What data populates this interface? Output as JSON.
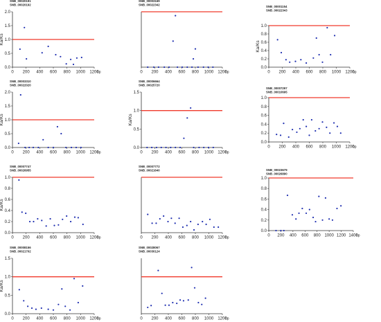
{
  "colors": {
    "threshold": "#f0392b",
    "points": "#1f2fb0",
    "axis": "#333333"
  },
  "chart_data": [
    {
      "type": "scatter",
      "genes": [
        "SNB_00020191",
        "SNB_00020192"
      ],
      "ylabel": "Ka/Ks",
      "xunit": "bp",
      "xlim": [
        0,
        1200
      ],
      "ylim": [
        0,
        2.0
      ],
      "xticks": [
        0,
        200,
        400,
        600,
        800,
        1000,
        1200
      ],
      "yticks": [
        0.0,
        0.5,
        1.0,
        1.5,
        2.0
      ],
      "threshold": 1.0,
      "points": [
        [
          110,
          0.65
        ],
        [
          175,
          1.43
        ],
        [
          205,
          0.3
        ],
        [
          435,
          0.52
        ],
        [
          525,
          0.75
        ],
        [
          635,
          0.45
        ],
        [
          705,
          0.38
        ],
        [
          790,
          0.12
        ],
        [
          855,
          0.28
        ],
        [
          895,
          0.1
        ],
        [
          945,
          0.33
        ],
        [
          1015,
          0.35
        ]
      ]
    },
    {
      "type": "scatter",
      "genes": [
        "SNB_00003169",
        "SNB_00022342"
      ],
      "ylabel": "",
      "xunit": "bp",
      "xlim": [
        0,
        1200
      ],
      "ylim": [
        0,
        1.0
      ],
      "xticks": [
        0,
        200,
        400,
        600,
        800,
        1000,
        1200
      ],
      "yticks": [],
      "threshold": 1.0,
      "points": [
        [
          95,
          0.0
        ],
        [
          185,
          0.0
        ],
        [
          255,
          0.0
        ],
        [
          340,
          0.0
        ],
        [
          410,
          0.0
        ],
        [
          470,
          0.47
        ],
        [
          505,
          0.93
        ],
        [
          535,
          0.0
        ],
        [
          605,
          0.0
        ],
        [
          680,
          0.0
        ],
        [
          750,
          0.0
        ],
        [
          770,
          0.15
        ],
        [
          800,
          0.33
        ],
        [
          840,
          0.0
        ],
        [
          920,
          0.0
        ],
        [
          990,
          0.0
        ],
        [
          1060,
          0.0
        ]
      ]
    },
    {
      "type": "scatter",
      "genes": [
        "SNB_00001154",
        "SNB_00022343"
      ],
      "ylabel": "Ka/Ks",
      "xunit": "bp",
      "xlim": [
        0,
        1200
      ],
      "ylim": [
        0,
        1.0
      ],
      "xticks": [
        0,
        200,
        400,
        600,
        800,
        1000,
        1200
      ],
      "yticks": [
        0.0,
        0.2,
        0.4,
        0.6,
        0.8,
        1.0
      ],
      "threshold": 1.0,
      "points": [
        [
          130,
          0.66
        ],
        [
          185,
          0.35
        ],
        [
          255,
          0.18
        ],
        [
          310,
          0.12
        ],
        [
          395,
          0.14
        ],
        [
          475,
          0.18
        ],
        [
          555,
          0.1
        ],
        [
          660,
          0.22
        ],
        [
          705,
          0.7
        ],
        [
          745,
          0.3
        ],
        [
          795,
          0.12
        ],
        [
          865,
          0.95
        ],
        [
          915,
          0.3
        ],
        [
          975,
          0.76
        ]
      ]
    },
    {
      "type": "scatter",
      "genes": [
        "SNB_00003310",
        "SNB_00022020"
      ],
      "ylabel": "Ka/Ks",
      "xunit": "bp",
      "xlim": [
        0,
        1200
      ],
      "ylim": [
        0,
        2.0
      ],
      "xticks": [
        0,
        200,
        400,
        600,
        800,
        1000,
        1200
      ],
      "yticks": [
        0.0,
        0.5,
        1.0,
        1.5,
        2.0
      ],
      "threshold": 1.0,
      "points": [
        [
          90,
          0.15
        ],
        [
          120,
          1.9
        ],
        [
          185,
          0.0
        ],
        [
          245,
          0.0
        ],
        [
          305,
          0.0
        ],
        [
          380,
          0.0
        ],
        [
          450,
          0.28
        ],
        [
          525,
          0.0
        ],
        [
          600,
          0.0
        ],
        [
          660,
          0.75
        ],
        [
          715,
          0.5
        ],
        [
          785,
          0.0
        ],
        [
          865,
          0.0
        ],
        [
          935,
          0.0
        ],
        [
          1005,
          0.0
        ]
      ]
    },
    {
      "type": "scatter",
      "genes": [
        "SNB_00006664",
        "SNB_00025720"
      ],
      "ylabel": "Ka/Ks",
      "xunit": "bp",
      "xlim": [
        0,
        1200
      ],
      "ylim": [
        0,
        1.5
      ],
      "xticks": [
        0,
        200,
        400,
        600,
        800,
        1000,
        1200
      ],
      "yticks": [
        0.0,
        0.5,
        1.0,
        1.5
      ],
      "threshold": 1.0,
      "points": [
        [
          85,
          0.0
        ],
        [
          155,
          0.0
        ],
        [
          225,
          0.0
        ],
        [
          295,
          0.0
        ],
        [
          365,
          0.0
        ],
        [
          435,
          0.0
        ],
        [
          505,
          0.0
        ],
        [
          575,
          0.0
        ],
        [
          630,
          0.25
        ],
        [
          680,
          0.8
        ],
        [
          730,
          1.07
        ],
        [
          775,
          0.0
        ],
        [
          855,
          0.0
        ],
        [
          925,
          0.0
        ],
        [
          995,
          0.0
        ],
        [
          1065,
          0.0
        ]
      ]
    },
    {
      "type": "scatter",
      "genes": [
        "SNB_00007297",
        "SNB_00010695"
      ],
      "ylabel": "",
      "xunit": "bp",
      "xlim": [
        0,
        1200
      ],
      "ylim": [
        0,
        1.0
      ],
      "xticks": [
        0,
        200,
        400,
        600,
        800,
        1000,
        1200
      ],
      "yticks": [
        0.0,
        0.2,
        0.4,
        0.6,
        0.8,
        1.0
      ],
      "threshold": 1.0,
      "points": [
        [
          115,
          0.17
        ],
        [
          175,
          0.15
        ],
        [
          220,
          0.42
        ],
        [
          295,
          0.11
        ],
        [
          350,
          0.28
        ],
        [
          415,
          0.22
        ],
        [
          460,
          0.3
        ],
        [
          510,
          0.5
        ],
        [
          555,
          0.35
        ],
        [
          600,
          0.15
        ],
        [
          635,
          0.5
        ],
        [
          690,
          0.25
        ],
        [
          745,
          0.3
        ],
        [
          795,
          0.45
        ],
        [
          855,
          0.33
        ],
        [
          905,
          0.2
        ],
        [
          965,
          0.43
        ],
        [
          1015,
          0.35
        ],
        [
          1065,
          0.2
        ]
      ]
    },
    {
      "type": "scatter",
      "genes": [
        "SNB_00007747",
        "SNB_00026955"
      ],
      "ylabel": "Ka/Ks",
      "xunit": "bp",
      "xlim": [
        0,
        1200
      ],
      "ylim": [
        0,
        1.0
      ],
      "xticks": [
        0,
        200,
        400,
        600,
        800,
        1000,
        1200
      ],
      "yticks": [
        0.0,
        0.2,
        0.4,
        0.6,
        0.8,
        1.0
      ],
      "threshold": 1.0,
      "points": [
        [
          95,
          0.95
        ],
        [
          140,
          0.37
        ],
        [
          195,
          0.35
        ],
        [
          255,
          0.2
        ],
        [
          310,
          0.2
        ],
        [
          370,
          0.25
        ],
        [
          430,
          0.22
        ],
        [
          495,
          0.12
        ],
        [
          555,
          0.25
        ],
        [
          615,
          0.13
        ],
        [
          675,
          0.14
        ],
        [
          735,
          0.24
        ],
        [
          795,
          0.3
        ],
        [
          855,
          0.2
        ],
        [
          915,
          0.28
        ],
        [
          965,
          0.27
        ],
        [
          1035,
          0.15
        ]
      ]
    },
    {
      "type": "scatter",
      "genes": [
        "SNB_00007772",
        "SNB_00021640"
      ],
      "ylabel": "",
      "xunit": "bp",
      "xlim": [
        0,
        1200
      ],
      "ylim": [
        0,
        1.0
      ],
      "xticks": [
        0,
        200,
        400,
        600,
        800,
        1000,
        1200
      ],
      "yticks": [],
      "threshold": 1.0,
      "points": [
        [
          95,
          0.33
        ],
        [
          160,
          0.17
        ],
        [
          220,
          0.17
        ],
        [
          275,
          0.25
        ],
        [
          330,
          0.3
        ],
        [
          395,
          0.2
        ],
        [
          445,
          0.26
        ],
        [
          500,
          0.17
        ],
        [
          560,
          0.26
        ],
        [
          615,
          0.1
        ],
        [
          675,
          0.13
        ],
        [
          730,
          0.2
        ],
        [
          780,
          0.05
        ],
        [
          840,
          0.15
        ],
        [
          905,
          0.2
        ],
        [
          960,
          0.15
        ],
        [
          1015,
          0.24
        ],
        [
          1075,
          0.1
        ],
        [
          1140,
          0.1
        ]
      ]
    },
    {
      "type": "scatter",
      "genes": [
        "SNB_00023679",
        "SNB_00026890"
      ],
      "ylabel": "",
      "xunit": "bp",
      "xlim": [
        0,
        1400
      ],
      "ylim": [
        0,
        1.0
      ],
      "xticks": [
        0,
        200,
        400,
        600,
        800,
        1000,
        1200,
        1400
      ],
      "yticks": [
        0.0,
        0.2,
        0.4,
        0.6,
        0.8,
        1.0
      ],
      "threshold": 1.0,
      "points": [
        [
          120,
          0.0
        ],
        [
          200,
          0.0
        ],
        [
          250,
          0.0
        ],
        [
          310,
          0.67
        ],
        [
          390,
          0.3
        ],
        [
          450,
          0.22
        ],
        [
          500,
          0.33
        ],
        [
          555,
          0.42
        ],
        [
          620,
          0.33
        ],
        [
          675,
          0.4
        ],
        [
          735,
          0.25
        ],
        [
          775,
          0.17
        ],
        [
          830,
          0.65
        ],
        [
          890,
          0.2
        ],
        [
          940,
          0.62
        ],
        [
          1000,
          0.22
        ],
        [
          1055,
          0.2
        ],
        [
          1130,
          0.42
        ],
        [
          1195,
          0.47
        ]
      ]
    },
    {
      "type": "scatter",
      "genes": [
        "SNB_00008156",
        "SNB_00021702"
      ],
      "ylabel": "Ka/Ks",
      "xunit": "bp",
      "xlim": [
        0,
        1200
      ],
      "ylim": [
        0,
        1.5
      ],
      "xticks": [
        0,
        200,
        400,
        600,
        800,
        1000,
        1200
      ],
      "yticks": [
        0.0,
        0.5,
        1.0,
        1.5
      ],
      "threshold": 1.0,
      "points": [
        [
          100,
          0.65
        ],
        [
          165,
          0.35
        ],
        [
          225,
          0.2
        ],
        [
          285,
          0.15
        ],
        [
          345,
          0.12
        ],
        [
          425,
          0.15
        ],
        [
          525,
          0.12
        ],
        [
          600,
          0.1
        ],
        [
          675,
          0.25
        ],
        [
          725,
          0.67
        ],
        [
          775,
          0.2
        ],
        [
          845,
          0.1
        ],
        [
          905,
          0.95
        ],
        [
          965,
          0.3
        ],
        [
          1030,
          0.75
        ]
      ]
    },
    {
      "type": "scatter",
      "genes": [
        "SNB_00028067",
        "SNB_00030124"
      ],
      "ylabel": "",
      "xunit": "bp",
      "xlim": [
        0,
        1200
      ],
      "ylim": [
        0,
        1.5
      ],
      "xticks": [
        0,
        200,
        400,
        600,
        800,
        1000,
        1200
      ],
      "yticks": [],
      "threshold": 1.0,
      "points": [
        [
          95,
          0.17
        ],
        [
          145,
          0.22
        ],
        [
          250,
          1.17
        ],
        [
          305,
          0.55
        ],
        [
          355,
          0.23
        ],
        [
          410,
          0.23
        ],
        [
          465,
          0.3
        ],
        [
          525,
          0.28
        ],
        [
          575,
          0.37
        ],
        [
          625,
          0.35
        ],
        [
          695,
          0.37
        ],
        [
          745,
          1.25
        ],
        [
          790,
          0.7
        ],
        [
          845,
          0.3
        ],
        [
          895,
          0.25
        ],
        [
          950,
          0.42
        ]
      ]
    }
  ]
}
